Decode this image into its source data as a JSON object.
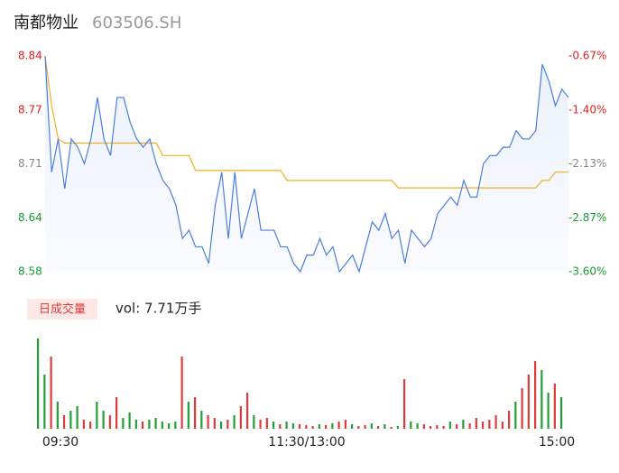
{
  "chart_data": [
    {
      "type": "line",
      "title": "南都物业",
      "subtitle": "603506.SH",
      "categories": [
        "09:30",
        null,
        null,
        null,
        null,
        null,
        null,
        null,
        null,
        null,
        null,
        null,
        null,
        null,
        null,
        null,
        null,
        null,
        null,
        null,
        null,
        null,
        null,
        null,
        null,
        null,
        null,
        null,
        null,
        null,
        null,
        null,
        null,
        null,
        null,
        null,
        null,
        null,
        null,
        null,
        "11:30/13:00",
        null,
        null,
        null,
        null,
        null,
        null,
        null,
        null,
        null,
        null,
        null,
        null,
        null,
        null,
        null,
        null,
        null,
        null,
        null,
        null,
        null,
        null,
        null,
        null,
        null,
        null,
        null,
        null,
        null,
        null,
        null,
        null,
        null,
        null,
        null,
        null,
        null,
        null,
        null,
        "15:00"
      ],
      "series": [
        {
          "color": "#4a7ee0",
          "values": [
            8.84,
            8.7,
            8.74,
            8.68,
            8.74,
            8.73,
            8.71,
            8.74,
            8.79,
            8.74,
            8.72,
            8.79,
            8.79,
            8.76,
            8.74,
            8.73,
            8.74,
            8.71,
            8.69,
            8.68,
            8.66,
            8.62,
            8.63,
            8.61,
            8.61,
            8.59,
            8.66,
            8.7,
            8.62,
            8.7,
            8.62,
            8.65,
            8.68,
            8.63,
            8.63,
            8.63,
            8.61,
            8.61,
            8.59,
            8.58,
            8.6,
            8.6,
            8.62,
            8.6,
            8.61,
            8.58,
            8.59,
            8.6,
            8.58,
            8.61,
            8.64,
            8.63,
            8.65,
            8.62,
            8.63,
            8.59,
            8.63,
            8.62,
            8.61,
            8.62,
            8.65,
            8.66,
            8.67,
            8.66,
            8.69,
            8.67,
            8.67,
            8.71,
            8.72,
            8.72,
            8.73,
            8.73,
            8.75,
            8.74,
            8.74,
            8.75,
            8.83,
            8.81,
            8.78,
            8.8,
            8.79
          ]
        },
        {
          "color": "#f0b020",
          "values": [
            8.84,
            8.78,
            8.74,
            8.735,
            8.735,
            8.735,
            8.735,
            8.735,
            8.735,
            8.735,
            8.735,
            8.735,
            8.735,
            8.735,
            8.735,
            8.735,
            8.735,
            8.735,
            8.72,
            8.72,
            8.72,
            8.72,
            8.72,
            8.702,
            8.702,
            8.702,
            8.702,
            8.702,
            8.702,
            8.702,
            8.702,
            8.702,
            8.702,
            8.702,
            8.702,
            8.702,
            8.702,
            8.69,
            8.69,
            8.69,
            8.69,
            8.69,
            8.69,
            8.69,
            8.69,
            8.69,
            8.69,
            8.69,
            8.69,
            8.69,
            8.69,
            8.69,
            8.69,
            8.69,
            8.681,
            8.681,
            8.681,
            8.681,
            8.681,
            8.681,
            8.681,
            8.681,
            8.681,
            8.681,
            8.681,
            8.681,
            8.681,
            8.681,
            8.681,
            8.681,
            8.681,
            8.681,
            8.681,
            8.681,
            8.681,
            8.681,
            8.69,
            8.69,
            8.7,
            8.7,
            8.7
          ]
        }
      ],
      "ylim": [
        8.58,
        8.84
      ],
      "yticks": [
        {
          "value": 8.58,
          "label": "8.58"
        },
        {
          "value": 8.645,
          "label": "8.64"
        },
        {
          "value": 8.71,
          "label": "8.71"
        },
        {
          "value": 8.775,
          "label": "8.77"
        },
        {
          "value": 8.84,
          "label": "8.84"
        }
      ],
      "ytick_colors": [
        "#1a9a30",
        "#1a9a30",
        "#888888",
        "#e02020",
        "#e02020"
      ],
      "y2lim": [
        -3.6,
        -0.67
      ],
      "y2ticks": [
        {
          "value": -3.6,
          "label": "-3.60%"
        },
        {
          "value": -2.8675,
          "label": "-2.87%"
        },
        {
          "value": -2.135,
          "label": "-2.13%"
        },
        {
          "value": -1.4025,
          "label": "-1.40%"
        },
        {
          "value": -0.67,
          "label": "-0.67%"
        }
      ]
    },
    {
      "type": "bar",
      "badge": "日成交量",
      "summary": "vol: 7.71万手",
      "values": [
        100,
        60,
        80,
        30,
        15,
        20,
        25,
        10,
        8,
        30,
        20,
        15,
        35,
        12,
        18,
        10,
        8,
        10,
        12,
        8,
        6,
        8,
        80,
        30,
        35,
        20,
        15,
        12,
        8,
        10,
        15,
        25,
        40,
        15,
        10,
        12,
        8,
        5,
        8,
        6,
        5,
        4,
        3,
        5,
        4,
        6,
        8,
        10,
        5,
        3,
        4,
        6,
        3,
        5,
        2,
        3,
        55,
        8,
        6,
        5,
        3,
        4,
        3,
        8,
        5,
        10,
        6,
        12,
        8,
        10,
        15,
        8,
        20,
        30,
        45,
        60,
        75,
        65,
        40,
        50,
        35
      ],
      "up_color": "#e03a3a",
      "down_color": "#22a035"
    }
  ]
}
